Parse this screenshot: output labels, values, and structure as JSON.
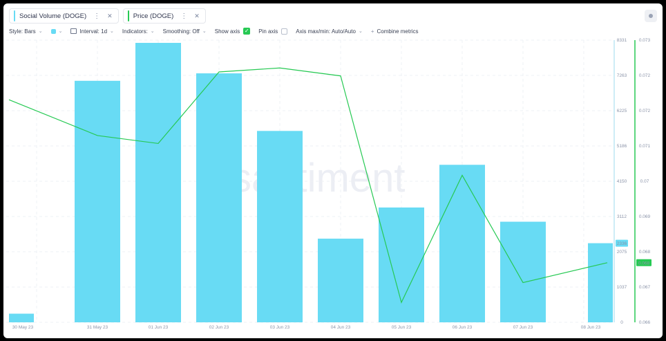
{
  "tabs": [
    {
      "label": "Social Volume (DOGE)",
      "color": "#68dbf4"
    },
    {
      "label": "Price (DOGE)",
      "color": "#26c953"
    }
  ],
  "toolbar": {
    "style": "Style: Bars",
    "interval": "Interval: 1d",
    "indicators": "Indicators:",
    "smoothing": "Smoothing: Off",
    "show_axis": "Show axis",
    "show_axis_checked": true,
    "pin_axis": "Pin axis",
    "pin_axis_checked": false,
    "axis_maxmin": "Axis max/min: Auto/Auto",
    "combine": "Combine metrics"
  },
  "watermark": "santiment",
  "chart_data": {
    "type": "bar",
    "categories": [
      "30 May 23",
      "31 May 23",
      "01 Jun 23",
      "02 Jun 23",
      "03 Jun 23",
      "04 Jun 23",
      "05 Jun 23",
      "06 Jun 23",
      "07 Jun 23",
      "08 Jun 23"
    ],
    "series": [
      {
        "name": "Social Volume (DOGE)",
        "type": "bar",
        "color": "#68dbf4",
        "values": [
          255,
          7130,
          8250,
          7350,
          5650,
          2470,
          3390,
          4650,
          2970,
          2336
        ],
        "axis": "left",
        "ylim": [
          0,
          8331
        ],
        "ticks": [
          "0",
          "1037",
          "2075",
          "3112",
          "4150",
          "5186",
          "6225",
          "7263",
          "8331"
        ],
        "last_label": "2336"
      },
      {
        "name": "Price (DOGE)",
        "type": "line",
        "color": "#26c953",
        "values": [
          0.0722,
          0.0713,
          0.0711,
          0.0729,
          0.073,
          0.0728,
          0.0671,
          0.0703,
          0.0676,
          0.0681
        ],
        "axis": "right",
        "ylim": [
          0.0666,
          0.0737
        ],
        "ticks": [
          "0.066",
          "0.067",
          "0.068",
          "0.069",
          "0.07",
          "0.071",
          "0.072",
          "0.072",
          "0.073"
        ],
        "last_label": "0.068"
      }
    ],
    "grid": true
  }
}
